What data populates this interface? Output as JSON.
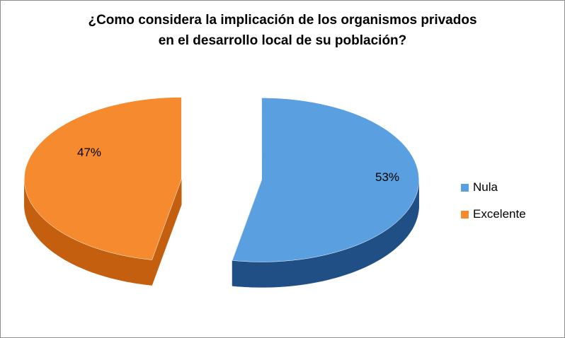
{
  "chart_data": {
    "type": "pie",
    "title_lines": [
      "¿Como considera la implicación de los organismos privados",
      "en el desarrollo local de su población?"
    ],
    "categories": [
      "Nula",
      "Excelente"
    ],
    "values": [
      53,
      47
    ],
    "data_labels": [
      "53%",
      "47%"
    ],
    "colors": {
      "Nula": {
        "top": "#5a9fe0",
        "side": "#1f4f85"
      },
      "Excelente": {
        "top": "#f58a2e",
        "side": "#c45f0f"
      }
    },
    "legend_position": "right",
    "style": "3d-exploded"
  }
}
